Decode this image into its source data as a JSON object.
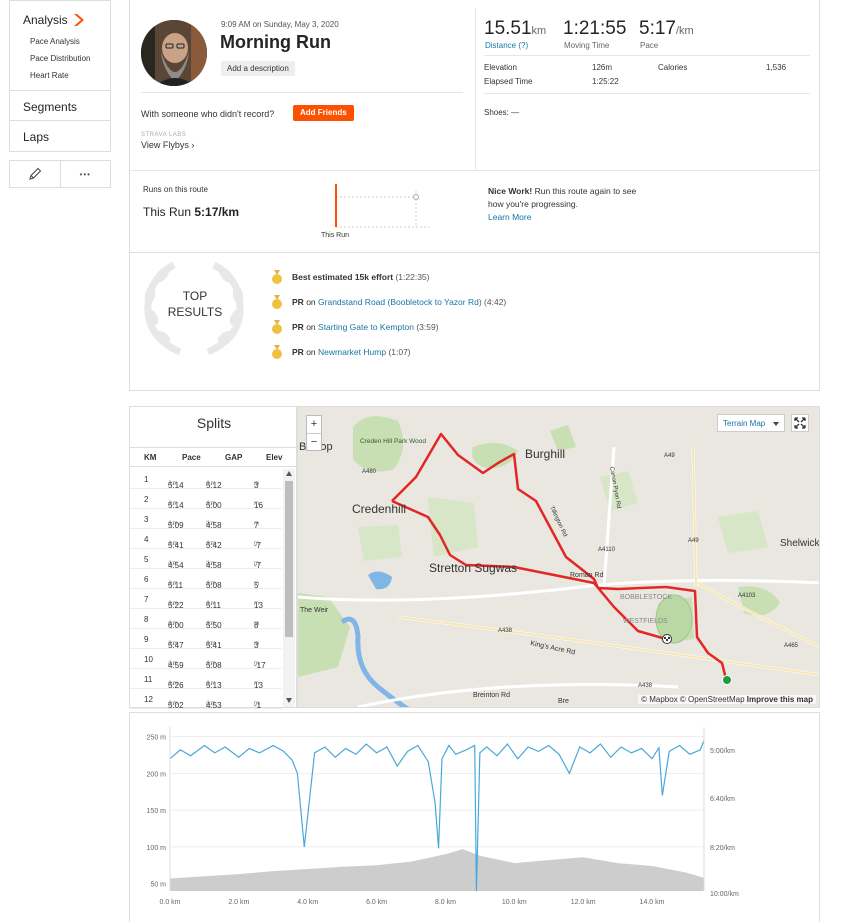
{
  "sidebar": {
    "analysis": "Analysis",
    "sub_items": [
      "Pace Analysis",
      "Pace Distribution",
      "Heart Rate"
    ],
    "segments": "Segments",
    "laps": "Laps",
    "more_dots": "•••"
  },
  "activity": {
    "datetime": "9:09 AM on Sunday, May 3, 2020",
    "title": "Morning Run",
    "add_description": "Add a description",
    "with_someone": "With someone who didn't record?",
    "add_friends": "Add Friends",
    "strava_labs": "STRAVA LABS",
    "view_flyby": "View Flybys",
    "shoes_label": "Shoes: —"
  },
  "stats": {
    "distance": "15.51",
    "distance_unit": "km",
    "distance_label": "Distance (?)",
    "moving_time": "1:21:55",
    "moving_time_label": "Moving Time",
    "pace": "5:17",
    "pace_unit": "/km",
    "pace_label": "Pace",
    "elevation_label": "Elevation",
    "elevation": "126m",
    "elapsed_label": "Elapsed Time",
    "elapsed": "1:25:22",
    "calories_label": "Calories",
    "calories": "1,536"
  },
  "route": {
    "label": "Runs on this route",
    "this_run_text": "This Run",
    "this_run_pace": "5:17/km",
    "chart_label": "This Run",
    "nice_work": "Nice Work!",
    "nice_work_text": "Run this route again to see how you're progressing.",
    "learn_more": "Learn More"
  },
  "top_results": {
    "heading_line1": "TOP",
    "heading_line2": "RESULTS",
    "items": [
      {
        "type": "Best estimated 15k effort",
        "link": "",
        "time": "(1:22:35)"
      },
      {
        "type": "PR",
        "on": "on",
        "link": "Grandstand Road (Boobletock to Yazor Rd)",
        "time": "(4:42)"
      },
      {
        "type": "PR",
        "on": "on",
        "link": "Starting Gate to Kempton",
        "time": "(3:59)"
      },
      {
        "type": "PR",
        "on": "on",
        "link": "Newmarket Hump",
        "time": "(1:07)"
      }
    ]
  },
  "splits": {
    "title": "Splits",
    "headers": [
      "KM",
      "Pace",
      "GAP",
      "Elev"
    ],
    "unit_km": "/km",
    "unit_m": "m",
    "rows": [
      {
        "km": "1",
        "pace": "5:14",
        "gap": "5:12",
        "elev": "3"
      },
      {
        "km": "2",
        "pace": "5:14",
        "gap": "5:00",
        "elev": "16"
      },
      {
        "km": "3",
        "pace": "5:09",
        "gap": "4:58",
        "elev": "7"
      },
      {
        "km": "4",
        "pace": "5:41",
        "gap": "5:42",
        "elev": "-7"
      },
      {
        "km": "5",
        "pace": "4:54",
        "gap": "4:58",
        "elev": "-7"
      },
      {
        "km": "6",
        "pace": "5:11",
        "gap": "5:08",
        "elev": "5"
      },
      {
        "km": "7",
        "pace": "5:22",
        "gap": "5:11",
        "elev": "13"
      },
      {
        "km": "8",
        "pace": "6:00",
        "gap": "5:50",
        "elev": "8"
      },
      {
        "km": "9",
        "pace": "5:47",
        "gap": "5:41",
        "elev": "3"
      },
      {
        "km": "10",
        "pace": "4:59",
        "gap": "5:08",
        "elev": "-17"
      },
      {
        "km": "11",
        "pace": "5:26",
        "gap": "5:13",
        "elev": "13"
      },
      {
        "km": "12",
        "pace": "5:02",
        "gap": "4:53",
        "elev": "-1"
      }
    ]
  },
  "map": {
    "terrain_label": "Terrain Map",
    "zoom_in": "+",
    "zoom_out": "−",
    "attribution_mapbox": "© Mapbox",
    "attribution_osm": "© OpenStreetMap",
    "improve": "Improve this map",
    "labels": {
      "bishop": "Bishop",
      "credenhill_wood": "Creden Hill Park Wood",
      "burghill": "Burghill",
      "credenhill": "Credenhill",
      "shelwick": "Shelwick",
      "stretton": "Stretton Sugwas",
      "the_weir": "The Weir",
      "kings_acre": "King's Acre Rd",
      "breinton": "Breinton Rd",
      "a4110": "A4110",
      "a49": "A49",
      "a438": "A438",
      "a4103": "A4103",
      "roman_rd": "Roman Rd",
      "canon_pyon": "Canon Pyon Rd",
      "bobblestock": "BOBBLESTOCK",
      "westfields": "WESTFIELDS",
      "a465": "A465",
      "tillington": "Tillington Rd",
      "a480": "A480",
      "b_road": "Bre"
    },
    "colors": {
      "route": "#e32626",
      "start": "#1e9b3f"
    }
  },
  "chart_data": {
    "type": "line",
    "x_ticks": [
      "0.0 km",
      "2.0 km",
      "4.0 km",
      "6.0 km",
      "8.0 km",
      "10.0 km",
      "12.0 km",
      "14.0 km"
    ],
    "y_left_ticks": [
      "250 m",
      "200 m",
      "150 m",
      "100 m",
      "50 m"
    ],
    "y_right_ticks": [
      "5:00/km",
      "6:40/km",
      "8:20/km",
      "10:00/km"
    ],
    "xlim": [
      0,
      15.51
    ],
    "elevation_ylim": [
      40,
      255
    ],
    "series": [
      {
        "color": "#4aa8d8",
        "axis": "left",
        "x": [
          0,
          0.3,
          0.6,
          1.0,
          1.3,
          1.6,
          2.0,
          2.3,
          2.6,
          3.0,
          3.3,
          3.55,
          3.7,
          3.9,
          4.2,
          4.5,
          4.8,
          5.1,
          5.4,
          5.7,
          6.0,
          6.3,
          6.6,
          6.9,
          7.2,
          7.5,
          7.7,
          7.8,
          7.9,
          8.1,
          8.3,
          8.6,
          8.85,
          8.9,
          9.0,
          9.2,
          9.5,
          9.8,
          10.1,
          10.4,
          10.7,
          11.0,
          11.3,
          11.6,
          11.9,
          12.2,
          12.5,
          12.8,
          13.1,
          13.4,
          13.7,
          14.0,
          14.2,
          14.3,
          14.5,
          14.8,
          15.1,
          15.4,
          15.51
        ],
        "y": [
          220,
          232,
          224,
          238,
          228,
          236,
          222,
          234,
          228,
          238,
          230,
          218,
          200,
          100,
          228,
          236,
          222,
          234,
          226,
          240,
          228,
          236,
          210,
          230,
          238,
          216,
          160,
          98,
          220,
          238,
          226,
          232,
          238,
          40,
          228,
          236,
          224,
          240,
          220,
          236,
          230,
          238,
          226,
          200,
          236,
          228,
          240,
          222,
          236,
          228,
          234,
          220,
          235,
          170,
          230,
          238,
          226,
          232,
          245
        ]
      },
      {
        "color": "#c8c8c8",
        "axis": "left",
        "fill": true,
        "x": [
          0,
          1,
          2,
          3,
          4,
          5,
          6,
          7,
          8,
          8.5,
          9,
          10,
          11,
          12,
          13,
          14,
          15,
          15.51
        ],
        "y": [
          57,
          60,
          63,
          67,
          70,
          73,
          75,
          80,
          90,
          97,
          88,
          78,
          82,
          86,
          78,
          74,
          65,
          58
        ]
      }
    ]
  }
}
